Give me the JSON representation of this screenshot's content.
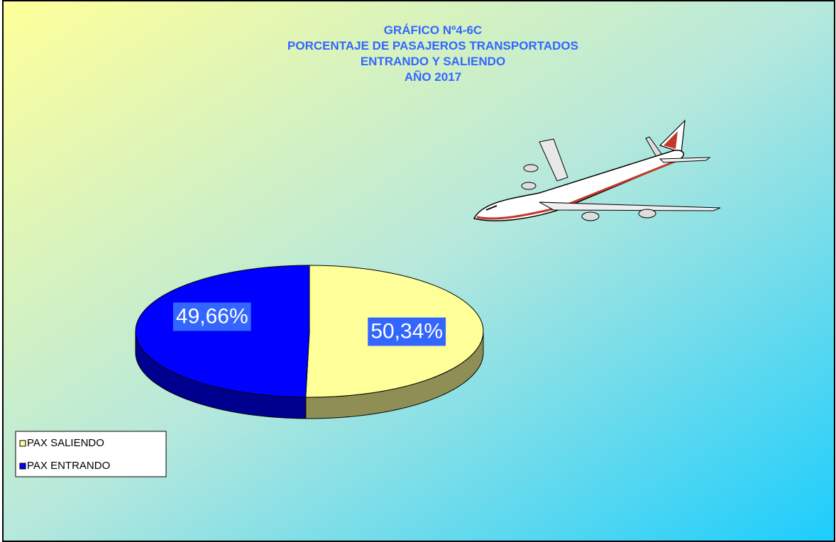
{
  "chart_data": {
    "type": "pie3d",
    "title": [
      "GRÁFICO Nº4-6C",
      "PORCENTAJE DE PASAJEROS TRANSPORTADOS",
      "ENTRANDO Y SALIENDO",
      "AÑO 2017"
    ],
    "categories": [
      "PAX SALIENDO",
      "PAX ENTRANDO"
    ],
    "values": [
      50.34,
      49.66
    ],
    "value_labels": [
      "50,34%",
      "49,66%"
    ],
    "colors": [
      "#ffff99",
      "#0000ff"
    ],
    "side_colors": [
      "#8f8f55",
      "#00008f"
    ]
  }
}
